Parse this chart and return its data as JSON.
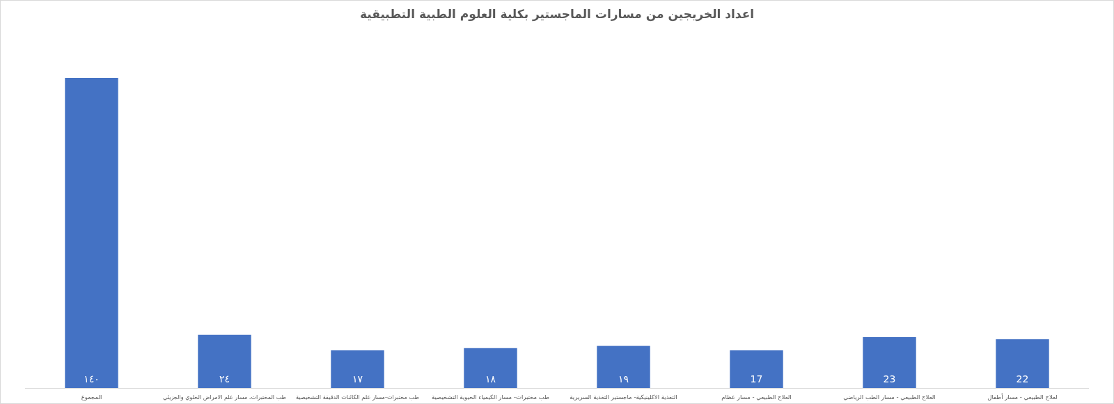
{
  "chart_data": {
    "type": "bar",
    "title": "اعداد الخريجين من مسارات الماجستير بكلية العلوم الطبية التطبيقية",
    "categories": [
      "المجموع",
      "طب المختبرات، مسار علم الامراض الخلوي والجزيئي",
      "طب مختبرات-مسار علم الكائنات الدقيقة التشخيصية",
      "طب مختبرات- مسار الكيمياء الحيوية التشخيصية",
      "التغذية الاكلينيكية- ماجستير التغذية السريرية",
      "العلاج الطبيعي - مسار عظام",
      "العلاج الطبيعي - مسار الطب الرياضي",
      "لعلاج الطبيعي - مسار أطفال"
    ],
    "values": [
      140,
      24,
      17,
      18,
      19,
      17,
      23,
      22
    ],
    "value_labels": [
      "١٤٠",
      "٢٤",
      "١٧",
      "١٨",
      "١٩",
      "17",
      "23",
      "22"
    ],
    "color": "#4472c4"
  }
}
